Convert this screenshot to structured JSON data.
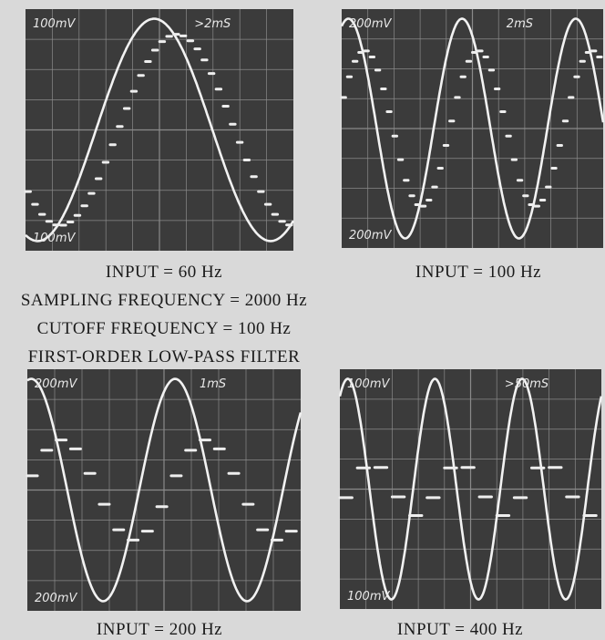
{
  "panels": [
    {
      "volts_top": "100mV",
      "time": ">2mS",
      "volts_bottom": "100mV",
      "caption": "INPUT = 60 Hz"
    },
    {
      "volts_top": "200mV",
      "time": "2mS",
      "volts_bottom": "200mV",
      "caption": "INPUT = 100 Hz"
    },
    {
      "volts_top": "200mV",
      "time": "1mS",
      "volts_bottom": "200mV",
      "caption": "INPUT = 200 Hz"
    },
    {
      "volts_top": "100mV",
      "time": ">50mS",
      "volts_bottom": "100mV",
      "caption": "INPUT = 400 Hz"
    }
  ],
  "notes": [
    "SAMPLING FREQUENCY = 2000 Hz",
    "CUTOFF FREQUENCY = 100 Hz",
    "FIRST-ORDER LOW-PASS FILTER"
  ]
}
